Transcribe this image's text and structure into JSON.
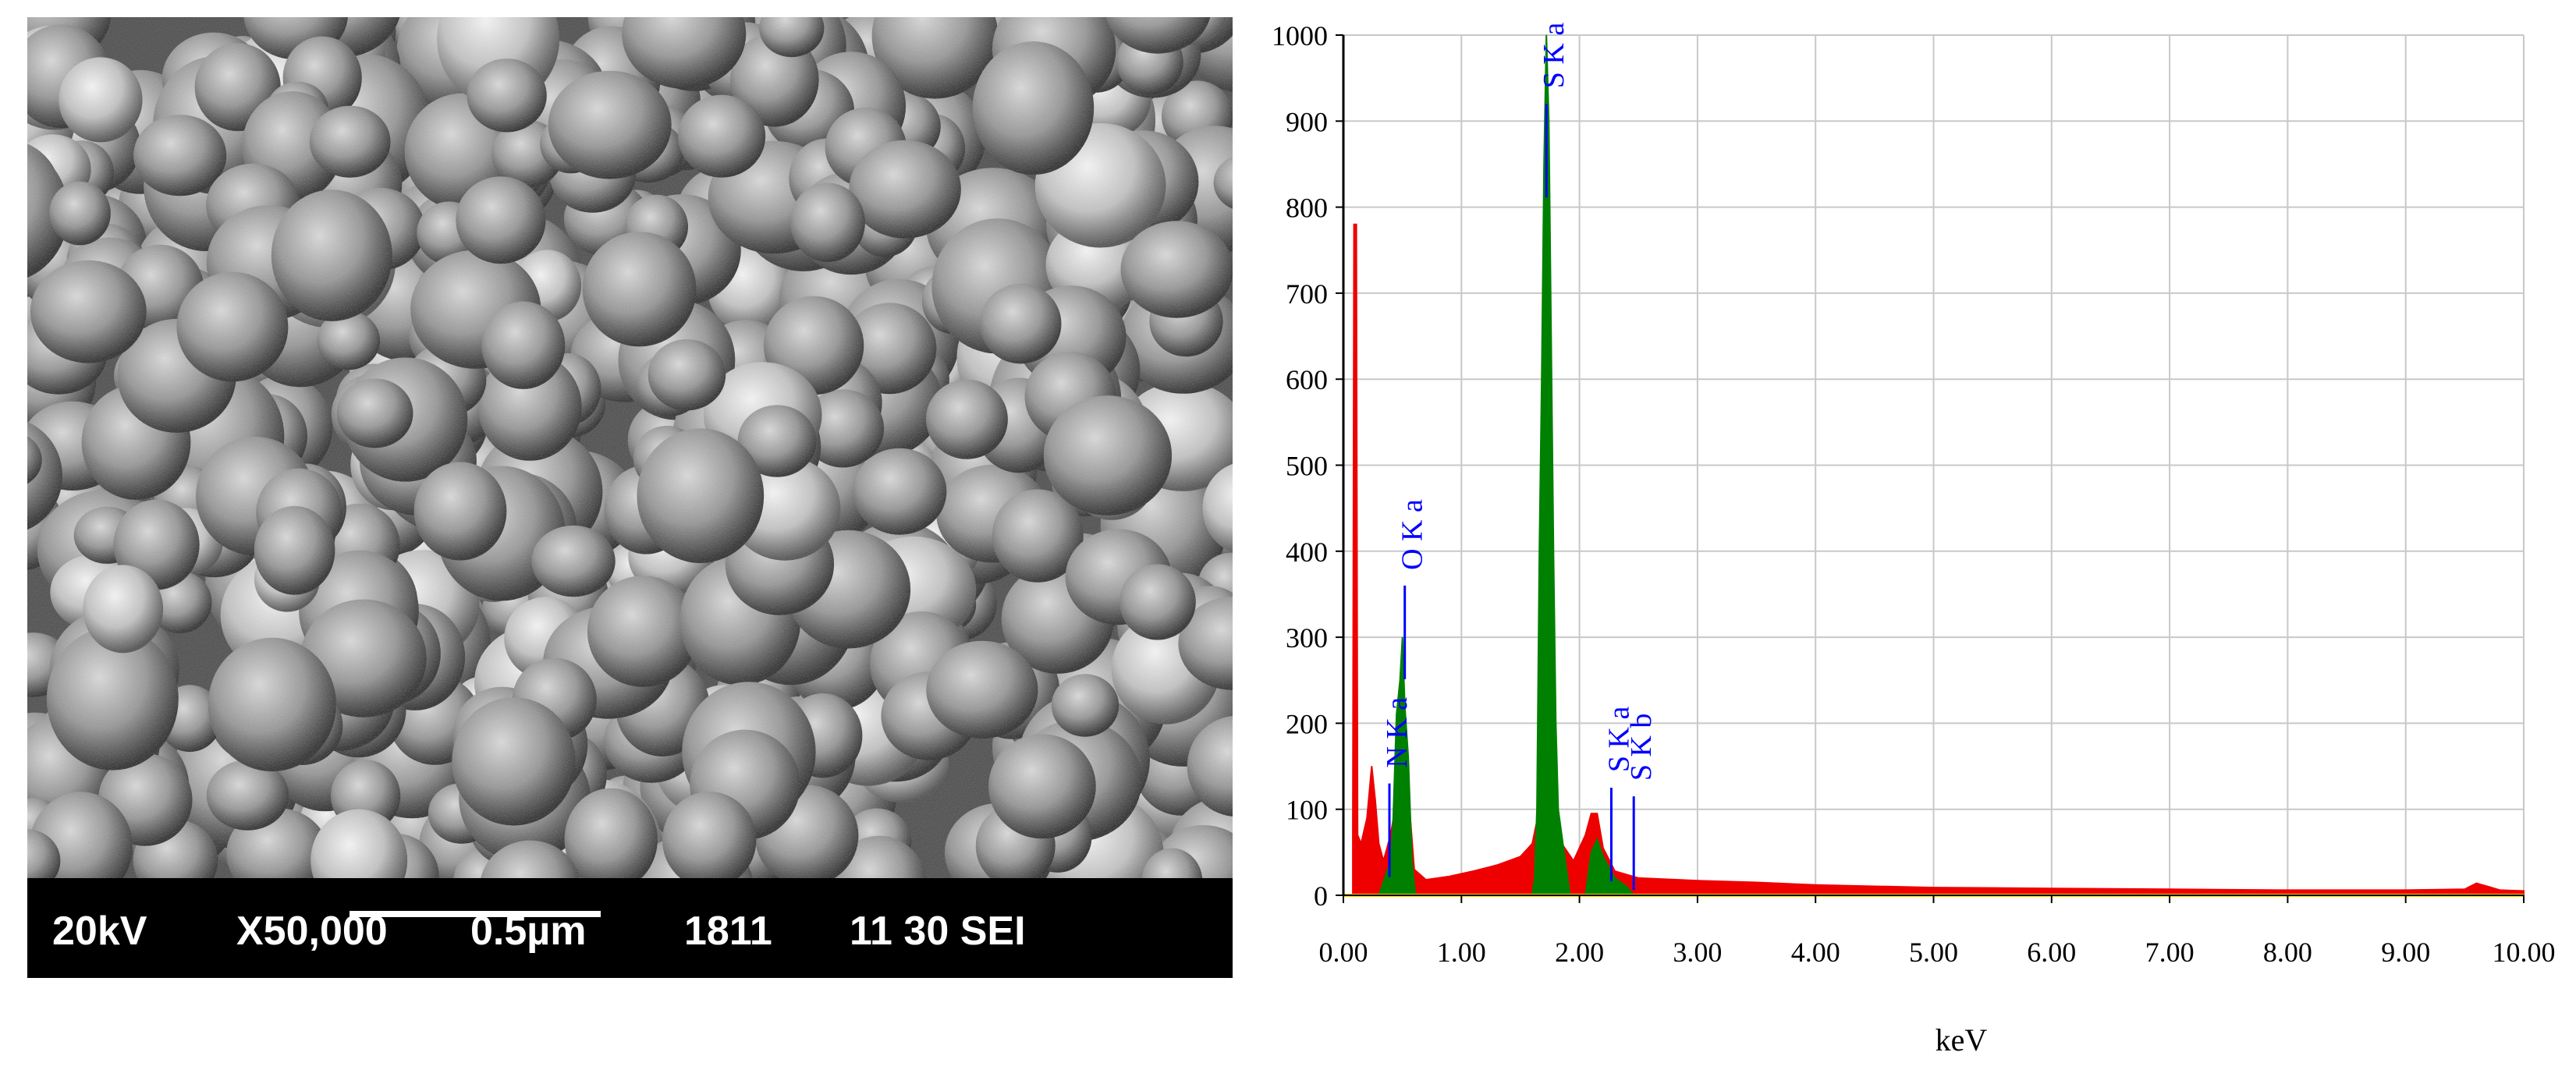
{
  "sem": {
    "voltage": "20kV",
    "magnification": "X50,000",
    "scale_bar": "0.5µm",
    "code": "1811",
    "date_mode": "11 30 SEI"
  },
  "colors": {
    "spectrum_fill": "#ee0000",
    "peak_fill": "#008000",
    "marker": "#0000ff",
    "baseline": "#ffd800",
    "grid": "#c8c8c8"
  },
  "chart_data": {
    "type": "area",
    "xlabel": "keV",
    "ylabel": "",
    "xlim": [
      0,
      10
    ],
    "ylim": [
      0,
      1000
    ],
    "x_ticks": [
      "0.00",
      "1.00",
      "2.00",
      "3.00",
      "4.00",
      "5.00",
      "6.00",
      "7.00",
      "8.00",
      "9.00",
      "10.00"
    ],
    "y_ticks": [
      "0",
      "100",
      "200",
      "300",
      "400",
      "500",
      "600",
      "700",
      "800",
      "900",
      "1000"
    ],
    "grid": true,
    "series": [
      {
        "style": "red-filled",
        "points": [
          [
            0.08,
            80
          ],
          [
            0.09,
            780
          ],
          [
            0.11,
            780
          ],
          [
            0.12,
            70
          ],
          [
            0.15,
            60
          ],
          [
            0.2,
            90
          ],
          [
            0.24,
            150
          ],
          [
            0.27,
            110
          ],
          [
            0.3,
            60
          ],
          [
            0.34,
            40
          ],
          [
            0.4,
            70
          ],
          [
            0.45,
            110
          ],
          [
            0.5,
            160
          ],
          [
            0.55,
            120
          ],
          [
            0.6,
            30
          ],
          [
            0.7,
            18
          ],
          [
            0.9,
            22
          ],
          [
            1.1,
            28
          ],
          [
            1.3,
            35
          ],
          [
            1.5,
            45
          ],
          [
            1.6,
            60
          ],
          [
            1.66,
            100
          ],
          [
            1.8,
            110
          ],
          [
            1.85,
            60
          ],
          [
            1.95,
            40
          ],
          [
            2.05,
            70
          ],
          [
            2.1,
            95
          ],
          [
            2.15,
            95
          ],
          [
            2.2,
            55
          ],
          [
            2.3,
            28
          ],
          [
            2.5,
            20
          ],
          [
            3.0,
            17
          ],
          [
            3.5,
            15
          ],
          [
            4.0,
            12
          ],
          [
            5.0,
            9
          ],
          [
            6.0,
            8
          ],
          [
            7.0,
            7
          ],
          [
            8.0,
            6
          ],
          [
            9.0,
            6
          ],
          [
            9.5,
            7
          ],
          [
            9.6,
            14
          ],
          [
            9.7,
            10
          ],
          [
            9.8,
            6
          ],
          [
            10.0,
            5
          ]
        ]
      },
      {
        "style": "green-peaks",
        "points": [
          [
            0.3,
            0
          ],
          [
            0.35,
            20
          ],
          [
            0.4,
            40
          ],
          [
            0.42,
            80
          ],
          [
            0.45,
            210
          ],
          [
            0.48,
            250
          ],
          [
            0.5,
            300
          ],
          [
            0.52,
            220
          ],
          [
            0.55,
            160
          ],
          [
            0.58,
            40
          ],
          [
            0.61,
            0
          ],
          [
            1.6,
            0
          ],
          [
            1.62,
            20
          ],
          [
            1.64,
            100
          ],
          [
            1.66,
            400
          ],
          [
            1.68,
            600
          ],
          [
            1.7,
            850
          ],
          [
            1.72,
            1000
          ],
          [
            1.74,
            900
          ],
          [
            1.76,
            650
          ],
          [
            1.78,
            400
          ],
          [
            1.8,
            200
          ],
          [
            1.82,
            100
          ],
          [
            1.88,
            40
          ],
          [
            1.92,
            0
          ],
          [
            2.05,
            0
          ],
          [
            2.1,
            50
          ],
          [
            2.15,
            65
          ],
          [
            2.2,
            45
          ],
          [
            2.3,
            20
          ],
          [
            2.4,
            10
          ],
          [
            2.46,
            0
          ]
        ]
      }
    ],
    "annotations": [
      {
        "label": "O K a",
        "x": 0.52,
        "y": 360
      },
      {
        "label": "N K a",
        "x": 0.39,
        "y": 130
      },
      {
        "label": "S K a",
        "x": 1.72,
        "y": 920
      },
      {
        "label": "S K a",
        "x": 2.27,
        "y": 125
      },
      {
        "label": "S K b",
        "x": 2.46,
        "y": 115
      }
    ]
  }
}
